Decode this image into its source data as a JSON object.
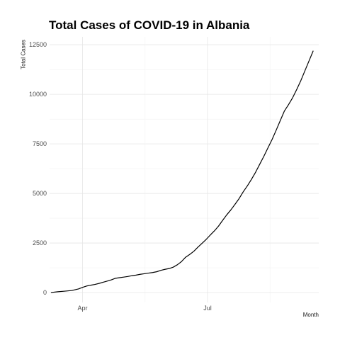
{
  "chart_data": {
    "type": "line",
    "title": "Total Cases of COVID-19 in Albania",
    "xlabel": "Month",
    "ylabel": "Total Cases",
    "x_tick_labels": [
      "Apr",
      "Jul"
    ],
    "x_ticks": [
      "2020-04-01",
      "2020-07-01"
    ],
    "xlim": [
      "2020-03-08",
      "2020-09-20"
    ],
    "y_ticks": [
      0,
      2500,
      5000,
      7500,
      10000,
      12500
    ],
    "y_tick_labels": [
      "0",
      "2500",
      "5000",
      "7500",
      "10000",
      "12500"
    ],
    "ylim": [
      -500,
      12900
    ],
    "grid": true,
    "line_color": "#000000",
    "series": [
      {
        "x": [
          "2020-03-09",
          "2020-03-14",
          "2020-03-19",
          "2020-03-24",
          "2020-03-29",
          "2020-04-01",
          "2020-04-04",
          "2020-04-07",
          "2020-04-10",
          "2020-04-13",
          "2020-04-16",
          "2020-04-19",
          "2020-04-22",
          "2020-04-25",
          "2020-04-28",
          "2020-05-01",
          "2020-05-04",
          "2020-05-07",
          "2020-05-10",
          "2020-05-13",
          "2020-05-16",
          "2020-05-19",
          "2020-05-22",
          "2020-05-25",
          "2020-05-28",
          "2020-05-31",
          "2020-06-03",
          "2020-06-06",
          "2020-06-09",
          "2020-06-12",
          "2020-06-15",
          "2020-06-18",
          "2020-06-21",
          "2020-06-24",
          "2020-06-27",
          "2020-06-30",
          "2020-07-03",
          "2020-07-06",
          "2020-07-09",
          "2020-07-12",
          "2020-07-15",
          "2020-07-18",
          "2020-07-21",
          "2020-07-24",
          "2020-07-27",
          "2020-07-30",
          "2020-08-02",
          "2020-08-05",
          "2020-08-08",
          "2020-08-11",
          "2020-08-14",
          "2020-08-17",
          "2020-08-20",
          "2020-08-23",
          "2020-08-26",
          "2020-08-29",
          "2020-09-01",
          "2020-09-04",
          "2020-09-07",
          "2020-09-10",
          "2020-09-13",
          "2020-09-16"
        ],
        "y": [
          2,
          40,
          70,
          100,
          180,
          260,
          330,
          370,
          410,
          460,
          520,
          580,
          640,
          720,
          750,
          780,
          810,
          850,
          880,
          920,
          950,
          980,
          1010,
          1050,
          1120,
          1170,
          1210,
          1280,
          1400,
          1560,
          1780,
          1920,
          2080,
          2290,
          2480,
          2680,
          2900,
          3110,
          3350,
          3640,
          3920,
          4170,
          4450,
          4740,
          5080,
          5380,
          5710,
          6070,
          6470,
          6870,
          7300,
          7720,
          8190,
          8680,
          9160,
          9480,
          9830,
          10250,
          10700,
          11200,
          11700,
          12200
        ]
      }
    ]
  }
}
